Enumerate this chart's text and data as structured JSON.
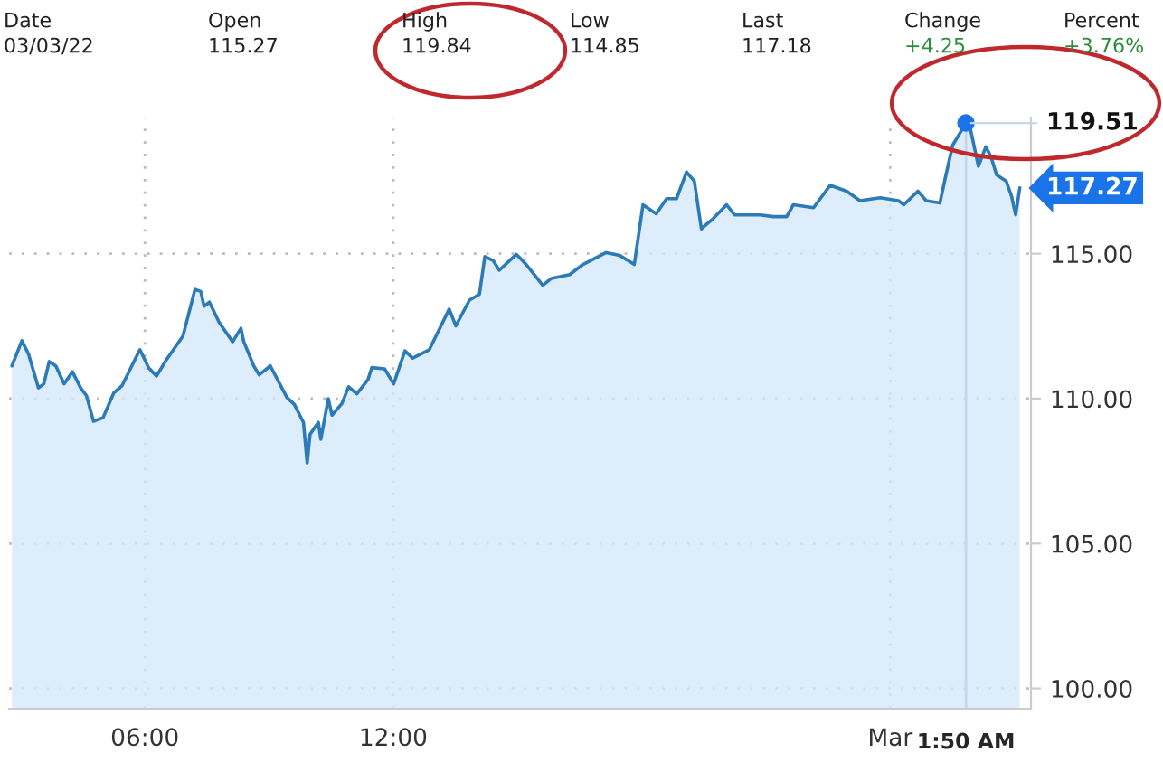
{
  "chart_data": {
    "type": "area",
    "x": [
      2.79,
      3.03,
      3.19,
      3.43,
      3.56,
      3.69,
      3.85,
      4.05,
      4.25,
      4.45,
      4.59,
      4.76,
      4.99,
      5.25,
      5.45,
      5.65,
      5.88,
      6.09,
      6.28,
      6.52,
      6.92,
      7.21,
      7.35,
      7.43,
      7.56,
      7.79,
      8.12,
      8.32,
      8.39,
      8.63,
      8.76,
      9.03,
      9.43,
      9.61,
      9.83,
      9.92,
      9.99,
      10.19,
      10.25,
      10.43,
      10.52,
      10.76,
      10.92,
      11.12,
      11.39,
      11.48,
      11.79,
      12.01,
      12.28,
      12.47,
      12.87,
      13.35,
      13.51,
      13.84,
      14.08,
      14.21,
      14.41,
      14.56,
      14.97,
      15.21,
      15.61,
      15.82,
      16.26,
      16.58,
      17.14,
      17.47,
      17.82,
      18.03,
      18.35,
      18.6,
      18.84,
      19.08,
      19.27,
      19.44,
      19.73,
      20.05,
      20.24,
      20.86,
      21.18,
      21.5,
      21.66,
      22.15,
      22.55,
      22.95,
      23.27,
      23.76,
      24.2,
      24.33,
      24.67,
      24.87,
      25.2,
      25.33,
      25.51,
      25.83,
      25.93,
      26.13,
      26.31,
      26.44,
      26.57,
      26.8,
      26.93,
      27.03,
      27.13
    ],
    "series": [
      {
        "color": "#2c7bb6",
        "values": [
          111.13,
          112.0,
          111.54,
          110.37,
          110.51,
          111.28,
          111.13,
          110.51,
          110.93,
          110.37,
          110.1,
          109.22,
          109.34,
          110.2,
          110.45,
          111.03,
          111.69,
          111.07,
          110.78,
          111.34,
          112.16,
          113.77,
          113.7,
          113.19,
          113.33,
          112.64,
          111.96,
          112.43,
          111.96,
          111.13,
          110.82,
          111.13,
          110.04,
          109.8,
          109.18,
          107.78,
          108.77,
          109.18,
          108.6,
          110.0,
          109.43,
          109.83,
          110.41,
          110.17,
          110.66,
          111.07,
          111.03,
          110.51,
          111.65,
          111.4,
          111.69,
          113.09,
          112.51,
          113.4,
          113.6,
          114.9,
          114.77,
          114.43,
          114.98,
          114.63,
          113.91,
          114.15,
          114.28,
          114.63,
          115.04,
          114.94,
          114.63,
          116.69,
          116.38,
          116.9,
          116.9,
          117.82,
          117.51,
          115.86,
          116.22,
          116.69,
          116.34,
          116.34,
          116.28,
          116.28,
          116.69,
          116.59,
          117.36,
          117.16,
          116.83,
          116.93,
          116.83,
          116.69,
          117.16,
          116.83,
          116.75,
          117.61,
          118.75,
          119.51,
          119.36,
          118.02,
          118.69,
          118.33,
          117.72,
          117.51,
          116.99,
          116.34,
          117.27
        ]
      }
    ],
    "xlim": [
      2.72,
      27.4
    ],
    "xticks": [
      {
        "value": 6,
        "label": "06:00"
      },
      {
        "value": 12,
        "label": "12:00"
      },
      {
        "value": 24,
        "label": "Mar"
      }
    ],
    "ylim": [
      99.3,
      119.7
    ],
    "yticks": [
      {
        "value": 100,
        "label": "100.00"
      },
      {
        "value": 105,
        "label": "105.00"
      },
      {
        "value": 110,
        "label": "110.00"
      },
      {
        "value": 115,
        "label": "115.00"
      }
    ],
    "grid": true,
    "ref_lines": [
      {
        "axis": "x",
        "value": 25.83,
        "color": "#c8d6e5"
      }
    ],
    "annotations": [
      "Date",
      "03/03/22",
      "Open",
      "115.27",
      "High",
      "119.84",
      "Low",
      "114.85",
      "Last",
      "117.18",
      "Change",
      "+4.25",
      "Percent",
      "+3.76%",
      "1:50 AM",
      {
        "text": "119.51",
        "x": 25.83,
        "y": 119.51
      },
      {
        "text": "117.27",
        "x": 27.13,
        "y": 117.27
      }
    ]
  }
}
